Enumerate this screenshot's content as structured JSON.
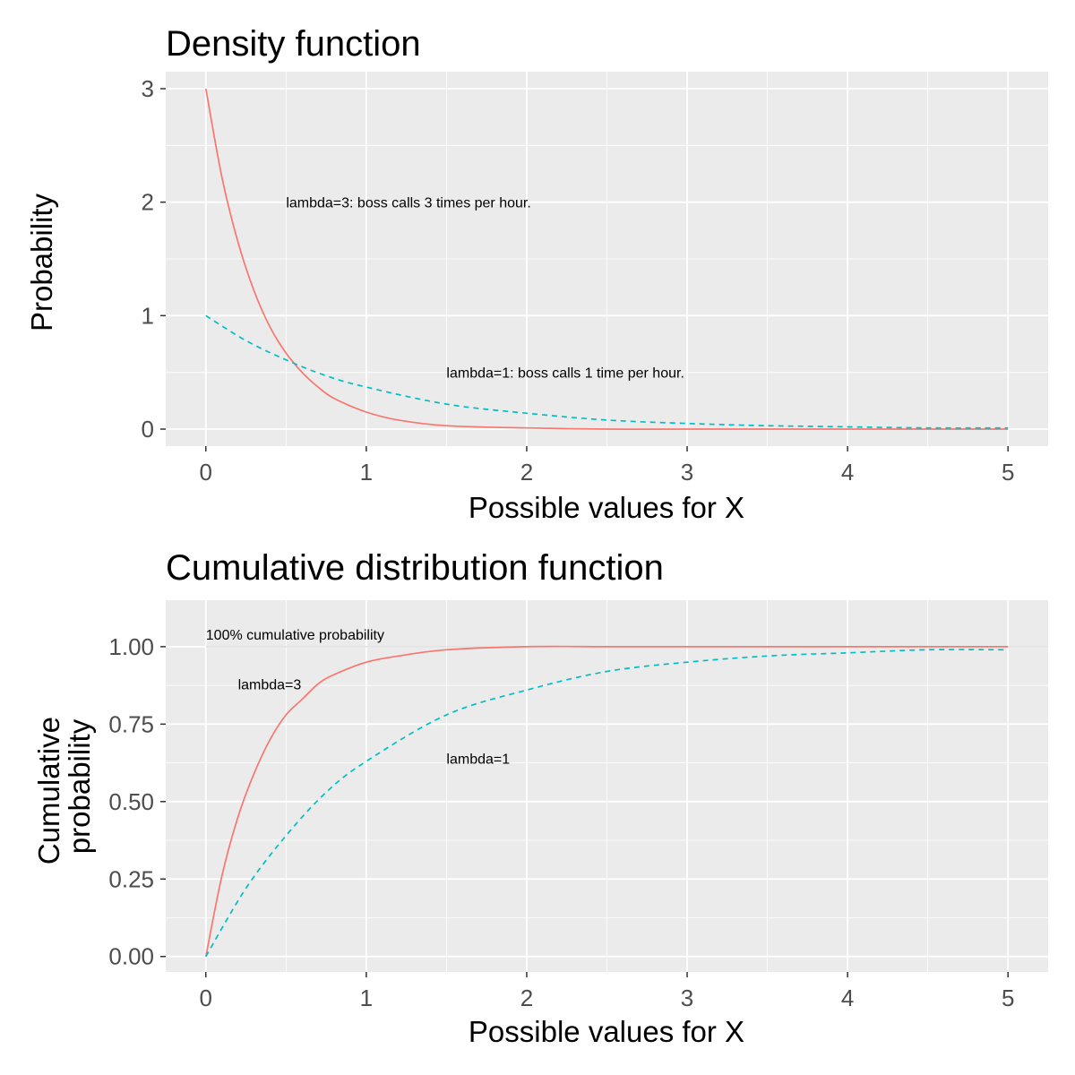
{
  "chart_data": [
    {
      "type": "line",
      "title": "Density function",
      "xlabel": "Possible values for X",
      "ylabel": "Probability",
      "xlim": [
        -0.25,
        5.25
      ],
      "ylim": [
        -0.15,
        3.15
      ],
      "xticks": [
        0,
        1,
        2,
        3,
        4,
        5
      ],
      "xtick_labels": [
        "0",
        "1",
        "2",
        "3",
        "4",
        "5"
      ],
      "yticks": [
        0,
        1,
        2,
        3
      ],
      "ytick_labels": [
        "0",
        "1",
        "2",
        "3"
      ],
      "grid": true,
      "legend": "none",
      "series": [
        {
          "color": "#F8766D",
          "linestyle": "solid",
          "x": [
            0,
            0.1,
            0.2,
            0.3,
            0.4,
            0.5,
            0.6,
            0.7,
            0.8,
            1.0,
            1.2,
            1.5,
            2.0,
            2.5,
            3.0,
            4.0,
            5.0
          ],
          "values": [
            3.0,
            2.22,
            1.65,
            1.22,
            0.9,
            0.67,
            0.5,
            0.37,
            0.27,
            0.15,
            0.08,
            0.03,
            0.01,
            0.0,
            0.0,
            0.0,
            0.0
          ]
        },
        {
          "color": "#00BFC4",
          "linestyle": "dashed",
          "x": [
            0,
            0.25,
            0.5,
            0.75,
            1.0,
            1.5,
            2.0,
            2.5,
            3.0,
            3.5,
            4.0,
            4.5,
            5.0
          ],
          "values": [
            1.0,
            0.78,
            0.61,
            0.47,
            0.37,
            0.22,
            0.14,
            0.08,
            0.05,
            0.03,
            0.02,
            0.01,
            0.01
          ]
        }
      ],
      "annotations": [
        {
          "text": "lambda=3: boss calls 3 times per hour.",
          "x": 0.5,
          "y": 2.0
        },
        {
          "text": "lambda=1: boss calls 1 time per hour.",
          "x": 1.5,
          "y": 0.5
        }
      ]
    },
    {
      "type": "line",
      "title": "Cumulative distribution function",
      "xlabel": "Possible values for X",
      "ylabel": [
        "Cumulative",
        "probability"
      ],
      "xlim": [
        -0.25,
        5.25
      ],
      "ylim": [
        -0.05,
        1.15
      ],
      "xticks": [
        0,
        1,
        2,
        3,
        4,
        5
      ],
      "xtick_labels": [
        "0",
        "1",
        "2",
        "3",
        "4",
        "5"
      ],
      "yticks": [
        0,
        0.25,
        0.5,
        0.75,
        1.0
      ],
      "ytick_labels": [
        "0.00",
        "0.25",
        "0.50",
        "0.75",
        "1.00"
      ],
      "grid": true,
      "legend": "none",
      "hline": {
        "y": 1.0,
        "color": "#d9d9d9"
      },
      "series": [
        {
          "color": "#F8766D",
          "linestyle": "solid",
          "x": [
            0,
            0.1,
            0.2,
            0.3,
            0.4,
            0.5,
            0.6,
            0.7,
            0.8,
            1.0,
            1.2,
            1.5,
            2.0,
            2.5,
            3.0,
            4.0,
            5.0
          ],
          "values": [
            0.0,
            0.26,
            0.45,
            0.59,
            0.7,
            0.78,
            0.83,
            0.88,
            0.91,
            0.95,
            0.97,
            0.99,
            1.0,
            1.0,
            1.0,
            1.0,
            1.0
          ]
        },
        {
          "color": "#00BFC4",
          "linestyle": "dashed",
          "x": [
            0,
            0.25,
            0.5,
            0.75,
            1.0,
            1.5,
            2.0,
            2.5,
            3.0,
            3.5,
            4.0,
            4.5,
            5.0
          ],
          "values": [
            0.0,
            0.22,
            0.39,
            0.53,
            0.63,
            0.78,
            0.86,
            0.92,
            0.95,
            0.97,
            0.98,
            0.99,
            0.99
          ]
        }
      ],
      "annotations": [
        {
          "text": "100% cumulative probability",
          "x": 0.0,
          "y": 1.04
        },
        {
          "text": "lambda=3",
          "x": 0.2,
          "y": 0.88
        },
        {
          "text": "lambda=1",
          "x": 1.5,
          "y": 0.64
        }
      ]
    }
  ]
}
